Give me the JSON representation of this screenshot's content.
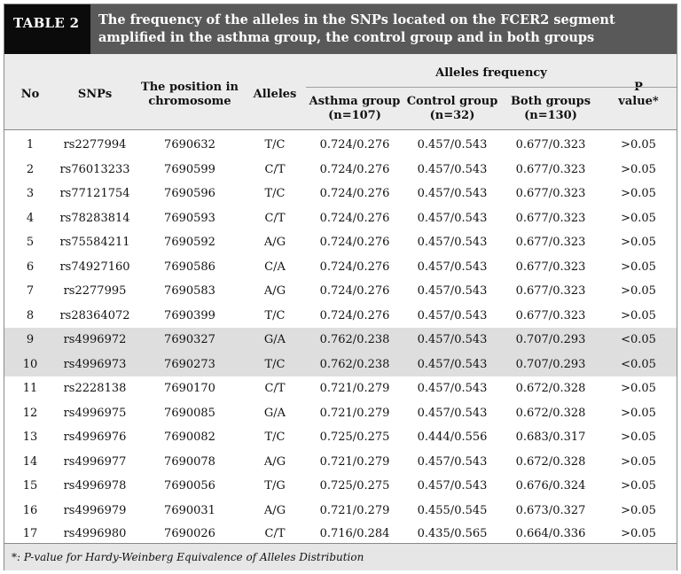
{
  "table": {
    "label": "TABLE 2",
    "title": "The frequency of the alleles in the SNPs located on the FCER2 segment amplified in the asthma group, the control group and in both groups",
    "headers": {
      "no": "No",
      "snps": "SNPs",
      "position_l1": "The position in",
      "position_l2": "chromosome",
      "alleles": "Alleles",
      "alleles_frequency": "Alleles frequency",
      "asthma_l1": "Asthma group",
      "asthma_l2": "(n=107)",
      "control_l1": "Control group",
      "control_l2": "(n=32)",
      "both_l1": "Both groups",
      "both_l2": "(n=130)",
      "p_l1": "P",
      "p_l2": "value*"
    },
    "rows": [
      {
        "no": "1",
        "snp": "rs2277994",
        "position": "7690632",
        "alleles": "T/C",
        "asthma": "0.724/0.276",
        "control": "0.457/0.543",
        "both": "0.677/0.323",
        "p": ">0.05",
        "shaded": false
      },
      {
        "no": "2",
        "snp": "rs76013233",
        "position": "7690599",
        "alleles": "C/T",
        "asthma": "0.724/0.276",
        "control": "0.457/0.543",
        "both": "0.677/0.323",
        "p": ">0.05",
        "shaded": false
      },
      {
        "no": "3",
        "snp": "rs77121754",
        "position": "7690596",
        "alleles": "T/C",
        "asthma": "0.724/0.276",
        "control": "0.457/0.543",
        "both": "0.677/0.323",
        "p": ">0.05",
        "shaded": false
      },
      {
        "no": "4",
        "snp": "rs78283814",
        "position": "7690593",
        "alleles": "C/T",
        "asthma": "0.724/0.276",
        "control": "0.457/0.543",
        "both": "0.677/0.323",
        "p": ">0.05",
        "shaded": false
      },
      {
        "no": "5",
        "snp": "rs75584211",
        "position": "7690592",
        "alleles": "A/G",
        "asthma": "0.724/0.276",
        "control": "0.457/0.543",
        "both": "0.677/0.323",
        "p": ">0.05",
        "shaded": false
      },
      {
        "no": "6",
        "snp": "rs74927160",
        "position": "7690586",
        "alleles": "C/A",
        "asthma": "0.724/0.276",
        "control": "0.457/0.543",
        "both": "0.677/0.323",
        "p": ">0.05",
        "shaded": false
      },
      {
        "no": "7",
        "snp": "rs2277995",
        "position": "7690583",
        "alleles": "A/G",
        "asthma": "0.724/0.276",
        "control": "0.457/0.543",
        "both": "0.677/0.323",
        "p": ">0.05",
        "shaded": false
      },
      {
        "no": "8",
        "snp": "rs28364072",
        "position": "7690399",
        "alleles": "T/C",
        "asthma": "0.724/0.276",
        "control": "0.457/0.543",
        "both": "0.677/0.323",
        "p": ">0.05",
        "shaded": false
      },
      {
        "no": "9",
        "snp": "rs4996972",
        "position": "7690327",
        "alleles": "G/A",
        "asthma": "0.762/0.238",
        "control": "0.457/0.543",
        "both": "0.707/0.293",
        "p": "<0.05",
        "shaded": true
      },
      {
        "no": "10",
        "snp": "rs4996973",
        "position": "7690273",
        "alleles": "T/C",
        "asthma": "0.762/0.238",
        "control": "0.457/0.543",
        "both": "0.707/0.293",
        "p": "<0.05",
        "shaded": true
      },
      {
        "no": "11",
        "snp": "rs2228138",
        "position": "7690170",
        "alleles": "C/T",
        "asthma": "0.721/0.279",
        "control": "0.457/0.543",
        "both": "0.672/0.328",
        "p": ">0.05",
        "shaded": false
      },
      {
        "no": "12",
        "snp": "rs4996975",
        "position": "7690085",
        "alleles": "G/A",
        "asthma": "0.721/0.279",
        "control": "0.457/0.543",
        "both": "0.672/0.328",
        "p": ">0.05",
        "shaded": false
      },
      {
        "no": "13",
        "snp": "rs4996976",
        "position": "7690082",
        "alleles": "T/C",
        "asthma": "0.725/0.275",
        "control": "0.444/0.556",
        "both": "0.683/0.317",
        "p": ">0.05",
        "shaded": false
      },
      {
        "no": "14",
        "snp": "rs4996977",
        "position": "7690078",
        "alleles": "A/G",
        "asthma": "0.721/0.279",
        "control": "0.457/0.543",
        "both": "0.672/0.328",
        "p": ">0.05",
        "shaded": false
      },
      {
        "no": "15",
        "snp": "rs4996978",
        "position": "7690056",
        "alleles": "T/G",
        "asthma": "0.725/0.275",
        "control": "0.457/0.543",
        "both": "0.676/0.324",
        "p": ">0.05",
        "shaded": false
      },
      {
        "no": "16",
        "snp": "rs4996979",
        "position": "7690031",
        "alleles": "A/G",
        "asthma": "0.721/0.279",
        "control": "0.455/0.545",
        "both": "0.673/0.327",
        "p": ">0.05",
        "shaded": false
      },
      {
        "no": "17",
        "snp": "rs4996980",
        "position": "7690026",
        "alleles": "C/T",
        "asthma": "0.716/0.284",
        "control": "0.435/0.565",
        "both": "0.664/0.336",
        "p": ">0.05",
        "shaded": false
      }
    ],
    "footnote": "*: P-value for Hardy-Weinberg Equivalence of Alleles Distribution"
  }
}
